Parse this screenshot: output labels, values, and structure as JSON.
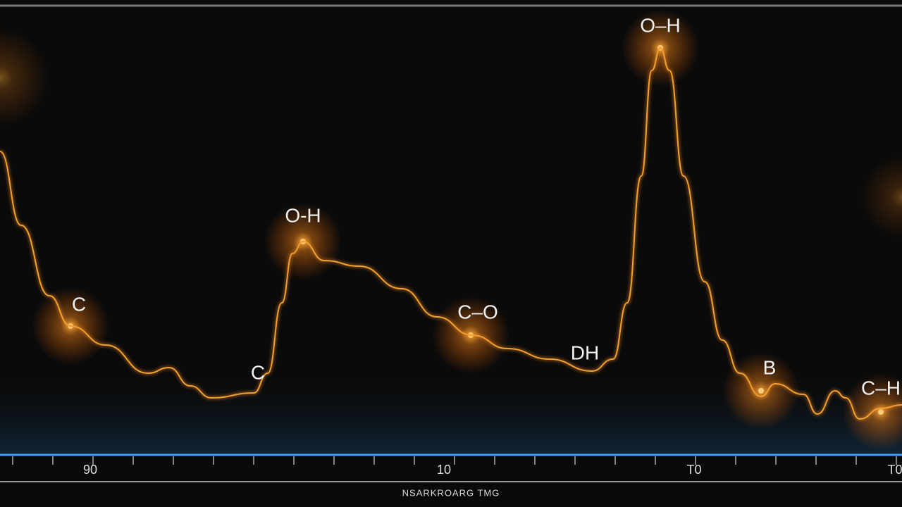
{
  "peak_labels": [
    "O–H",
    "O-H",
    "C",
    "C",
    "C–O",
    "DH",
    "B",
    "C–H"
  ],
  "axis": {
    "tick_labels": [
      "90",
      "10",
      "T0",
      "T0"
    ],
    "title": "NSARKROARG TMG"
  }
}
